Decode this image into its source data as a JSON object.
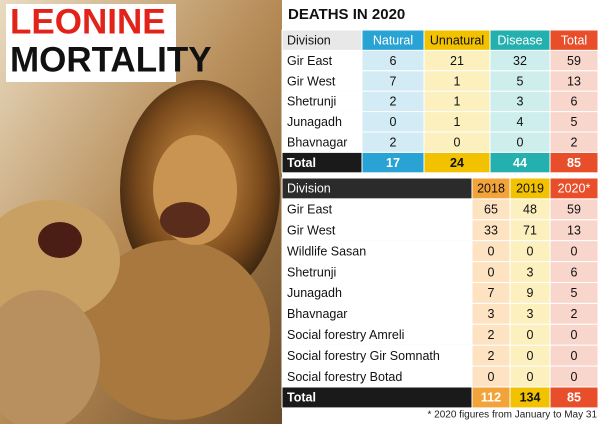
{
  "title": {
    "line1": "LEONINE",
    "line2": "MORTALITY"
  },
  "deaths_2020": {
    "title": "DEATHS IN 2020",
    "header": [
      "Division",
      "Natural",
      "Unnatural",
      "Disease",
      "Total"
    ],
    "rows": [
      [
        "Gir East",
        6,
        21,
        32,
        59
      ],
      [
        "Gir West",
        7,
        1,
        5,
        13
      ],
      [
        "Shetrunji",
        2,
        1,
        3,
        6
      ],
      [
        "Junagadh",
        0,
        1,
        4,
        5
      ],
      [
        "Bhavnagar",
        2,
        0,
        0,
        2
      ]
    ],
    "total": [
      "Total",
      17,
      24,
      44,
      85
    ]
  },
  "by_year": {
    "header": [
      "Division",
      "2018",
      "2019",
      "2020*"
    ],
    "rows": [
      [
        "Gir East",
        65,
        48,
        59
      ],
      [
        "Gir West",
        33,
        71,
        13
      ],
      [
        "Wildlife Sasan",
        0,
        0,
        0
      ],
      [
        "Shetrunji",
        0,
        3,
        6
      ],
      [
        "Junagadh",
        7,
        9,
        5
      ],
      [
        "Bhavnagar",
        3,
        3,
        2
      ],
      [
        "Social forestry Amreli",
        2,
        0,
        0
      ],
      [
        "Social forestry Gir Somnath",
        2,
        0,
        0
      ],
      [
        "Social forestry Botad",
        0,
        0,
        0
      ]
    ],
    "total": [
      "Total",
      112,
      134,
      85
    ]
  },
  "footnote": "* 2020 figures from January to May 31"
}
